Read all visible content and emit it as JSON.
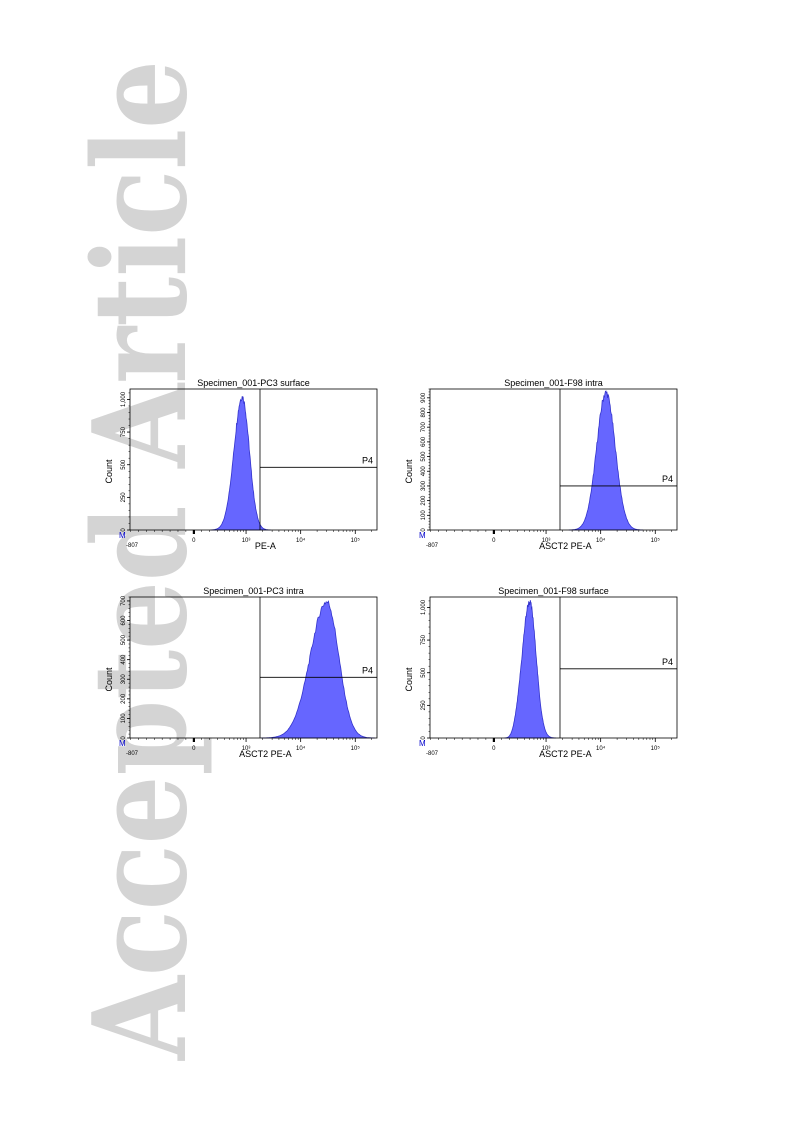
{
  "watermark": {
    "text": "Accepted Article"
  },
  "colors": {
    "fill": "#6666FF",
    "edge": "#3333CC",
    "axis": "#000000",
    "watermark": "#d4d4d4",
    "marker": "#0000CC"
  },
  "chart_data": [
    {
      "type": "histogram",
      "title": "Specimen_001-PC3 surface",
      "xlabel": "PE-A",
      "ylabel": "Count",
      "xscale": "biexponential",
      "xlim": [
        -807,
        250000
      ],
      "xtick_labels": [
        "-807",
        "0",
        "10³",
        "10⁴",
        "10⁵"
      ],
      "ylim": [
        0,
        1080
      ],
      "yticks": [
        0,
        250,
        500,
        750,
        1000
      ],
      "ytick_labels": [
        "0",
        "250",
        "500",
        "750",
        "1,000"
      ],
      "corner_label": "M",
      "gate": {
        "name": "P4",
        "x_threshold": 1800,
        "count_level": 480
      },
      "peak": {
        "center": 850,
        "height": 1020,
        "left_width_decades": 0.15,
        "right_width_decades": 0.13
      }
    },
    {
      "type": "histogram",
      "title": "Specimen_001-F98 intra",
      "xlabel": "ASCT2 PE-A",
      "ylabel": "Count",
      "xscale": "biexponential",
      "xlim": [
        -807,
        250000
      ],
      "xtick_labels": [
        "-807",
        "0",
        "10³",
        "10⁴",
        "10⁵"
      ],
      "ylim": [
        0,
        960
      ],
      "yticks": [
        0,
        100,
        200,
        300,
        400,
        500,
        600,
        700,
        800,
        900
      ],
      "ytick_labels": [
        "0",
        "100",
        "200",
        "300",
        "400",
        "500",
        "600",
        "700",
        "800",
        "900"
      ],
      "corner_label": "M",
      "gate": {
        "name": "P4",
        "x_threshold": 1800,
        "count_level": 300
      },
      "peak": {
        "center": 12500,
        "height": 935,
        "left_width_decades": 0.17,
        "right_width_decades": 0.17
      }
    },
    {
      "type": "histogram",
      "title": "Specimen_001-PC3 intra",
      "xlabel": "ASCT2 PE-A",
      "ylabel": "Count",
      "xscale": "biexponential",
      "xlim": [
        -807,
        250000
      ],
      "xtick_labels": [
        "-807",
        "0",
        "10³",
        "10⁴",
        "10⁵"
      ],
      "ylim": [
        0,
        720
      ],
      "yticks": [
        0,
        100,
        200,
        300,
        400,
        500,
        600,
        700
      ],
      "ytick_labels": [
        "0",
        "100",
        "200",
        "300",
        "400",
        "500",
        "600",
        "700"
      ],
      "corner_label": "M",
      "gate": {
        "name": "P4",
        "x_threshold": 1800,
        "count_level": 310
      },
      "peak": {
        "center": 30000,
        "height": 695,
        "left_width_decades": 0.3,
        "right_width_decades": 0.22
      }
    },
    {
      "type": "histogram",
      "title": "Specimen_001-F98 surface",
      "xlabel": "ASCT2 PE-A",
      "ylabel": "Count",
      "xscale": "biexponential",
      "xlim": [
        -807,
        250000
      ],
      "xtick_labels": [
        "-807",
        "0",
        "10³",
        "10⁴",
        "10⁵"
      ],
      "ylim": [
        0,
        1080
      ],
      "yticks": [
        0,
        250,
        500,
        750,
        1000
      ],
      "ytick_labels": [
        "0",
        "250",
        "500",
        "750",
        "1,000"
      ],
      "corner_label": "M",
      "gate": {
        "name": "P4",
        "x_threshold": 1800,
        "count_level": 530
      },
      "peak": {
        "center": 500,
        "height": 1040,
        "left_width_decades": 0.14,
        "right_width_decades": 0.12
      }
    }
  ]
}
